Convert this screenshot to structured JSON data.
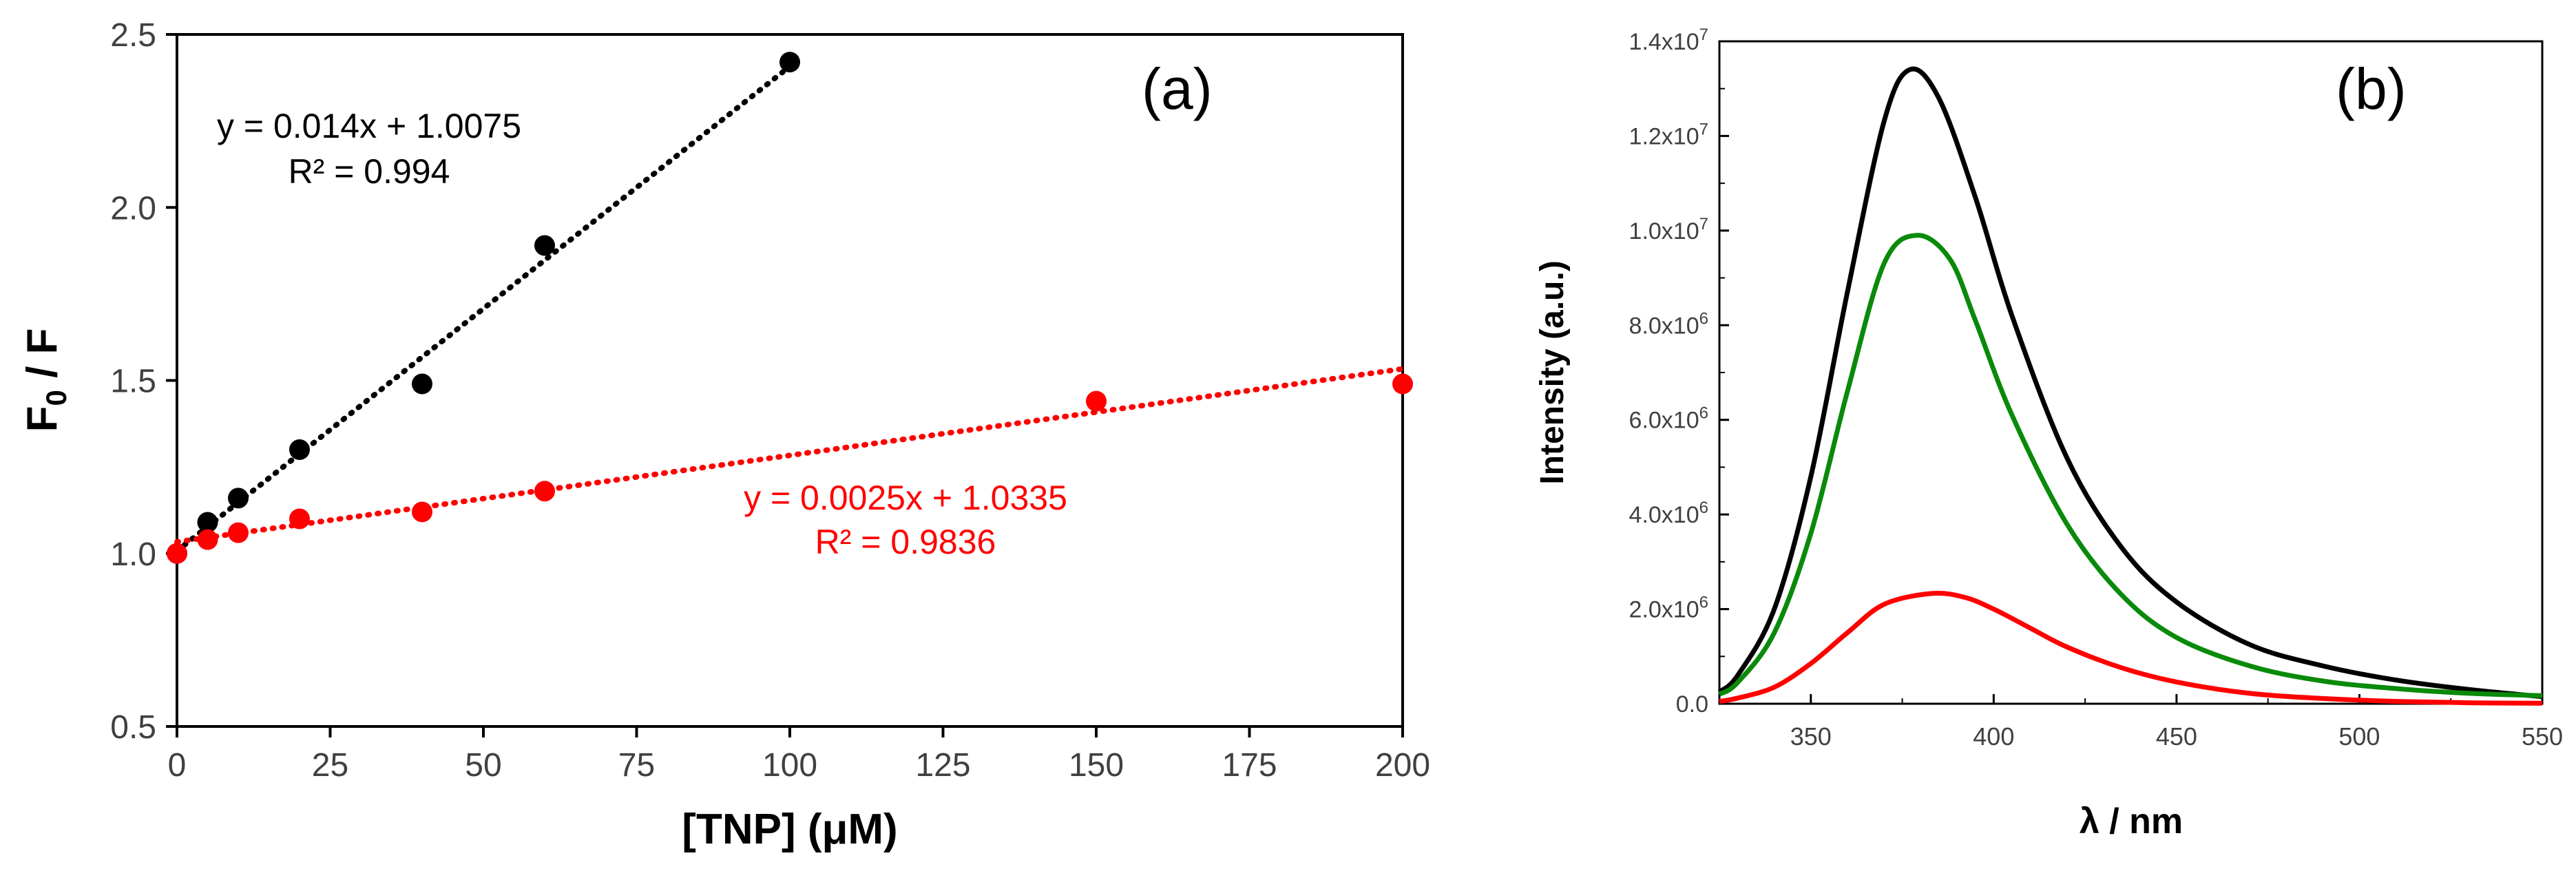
{
  "chart_data": [
    {
      "type": "scatter",
      "panel_label": "(a)",
      "xlabel": "[TNP] (μM)",
      "ylabel": {
        "main": "F",
        "sub": "0",
        "rest": " / F"
      },
      "xlim": [
        0,
        200
      ],
      "ylim": [
        0.5,
        2.5
      ],
      "xticks": [
        0,
        25,
        50,
        75,
        100,
        125,
        150,
        175,
        200
      ],
      "xtick_labels": [
        "0",
        "25",
        "50",
        "75",
        "100",
        "125",
        "150",
        "175",
        "200"
      ],
      "yticks": [
        0.5,
        1.0,
        1.5,
        2.0,
        2.5
      ],
      "ytick_labels": [
        "0.5",
        "1.0",
        "1.5",
        "2.0",
        "2.5"
      ],
      "series": [
        {
          "name": "black",
          "color": "#000000",
          "x": [
            0,
            5,
            10,
            20,
            40,
            60,
            100
          ],
          "y": [
            1.0,
            1.09,
            1.16,
            1.3,
            1.49,
            1.89,
            2.42
          ],
          "fit": {
            "slope": 0.014,
            "intercept": 1.0075,
            "x_range": [
              0,
              100
            ]
          },
          "equation": "y = 0.014x + 1.0075",
          "r2": "R² = 0.994"
        },
        {
          "name": "red",
          "color": "#ff0000",
          "x": [
            0,
            5,
            10,
            20,
            40,
            60,
            150,
            200
          ],
          "y": [
            1.0,
            1.04,
            1.06,
            1.1,
            1.12,
            1.18,
            1.44,
            1.49
          ],
          "fit": {
            "slope": 0.0025,
            "intercept": 1.0335,
            "x_range": [
              0,
              200
            ]
          },
          "equation": "y = 0.0025x + 1.0335",
          "r2": "R² = 0.9836"
        }
      ]
    },
    {
      "type": "line",
      "panel_label": "(b)",
      "xlabel": "λ / nm",
      "ylabel": "Intensity (a.u.)",
      "xlim": [
        325,
        550
      ],
      "ylim": [
        0,
        14000000
      ],
      "xticks": [
        350,
        400,
        450,
        500,
        550
      ],
      "xtick_labels": [
        "350",
        "400",
        "450",
        "500",
        "550"
      ],
      "yticks": [
        0,
        2000000,
        4000000,
        6000000,
        8000000,
        10000000,
        12000000,
        14000000
      ],
      "ytick_labels": [
        {
          "m": "0.0",
          "e": ""
        },
        {
          "m": "2.0x10",
          "e": "6"
        },
        {
          "m": "4.0x10",
          "e": "6"
        },
        {
          "m": "6.0x10",
          "e": "6"
        },
        {
          "m": "8.0x10",
          "e": "6"
        },
        {
          "m": "1.0x10",
          "e": "7"
        },
        {
          "m": "1.2x10",
          "e": "7"
        },
        {
          "m": "1.4x10",
          "e": "7"
        }
      ],
      "series": [
        {
          "name": "black",
          "color": "#000000",
          "x": [
            325,
            330,
            340,
            350,
            360,
            370,
            377,
            385,
            395,
            405,
            420,
            435,
            450,
            470,
            490,
            510,
            530,
            550
          ],
          "y": [
            250000,
            600000,
            2000000,
            4800000,
            8700000,
            12300000,
            13400000,
            12800000,
            10700000,
            8200000,
            5200000,
            3300000,
            2150000,
            1250000,
            800000,
            500000,
            300000,
            150000
          ]
        },
        {
          "name": "green",
          "color": "#0a8a0a",
          "x": [
            325,
            330,
            340,
            350,
            360,
            370,
            379,
            388,
            395,
            405,
            420,
            435,
            450,
            470,
            490,
            510,
            530,
            550
          ],
          "y": [
            200000,
            450000,
            1500000,
            3600000,
            6600000,
            9300000,
            9900000,
            9400000,
            8100000,
            6100000,
            3800000,
            2300000,
            1400000,
            800000,
            480000,
            320000,
            220000,
            170000
          ]
        },
        {
          "name": "red",
          "color": "#ff0000",
          "x": [
            325,
            330,
            340,
            350,
            360,
            370,
            383,
            392,
            400,
            410,
            420,
            435,
            450,
            470,
            490,
            510,
            530,
            550
          ],
          "y": [
            50000,
            120000,
            350000,
            850000,
            1500000,
            2100000,
            2330000,
            2250000,
            2000000,
            1600000,
            1200000,
            760000,
            460000,
            220000,
            110000,
            50000,
            20000,
            10000
          ]
        }
      ]
    }
  ]
}
